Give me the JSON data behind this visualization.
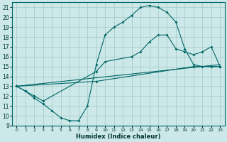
{
  "xlabel": "Humidex (Indice chaleur)",
  "bg_color": "#cce8e8",
  "grid_color": "#aacccc",
  "line_color": "#006666",
  "xlim": [
    -0.5,
    23.5
  ],
  "ylim": [
    9,
    21.5
  ],
  "yticks": [
    9,
    10,
    11,
    12,
    13,
    14,
    15,
    16,
    17,
    18,
    19,
    20,
    21
  ],
  "xticks": [
    0,
    1,
    2,
    3,
    4,
    5,
    6,
    7,
    8,
    9,
    10,
    11,
    12,
    13,
    14,
    15,
    16,
    17,
    18,
    19,
    20,
    21,
    22,
    23
  ],
  "line1_x": [
    0,
    1,
    2,
    3,
    4,
    5,
    6,
    7,
    8,
    9,
    10,
    11,
    12,
    13,
    14,
    15,
    16,
    17,
    18,
    19,
    20,
    21,
    22,
    23
  ],
  "line1_y": [
    13.0,
    12.5,
    11.8,
    11.2,
    10.5,
    9.8,
    9.5,
    9.5,
    11.0,
    15.2,
    18.2,
    19.0,
    19.5,
    20.2,
    21.0,
    21.2,
    21.0,
    20.5,
    19.5,
    16.8,
    15.2,
    15.0,
    15.0,
    15.0
  ],
  "line2_x": [
    0,
    1,
    2,
    3,
    9,
    10,
    13,
    14,
    15,
    16,
    17,
    18,
    19,
    20,
    21,
    22,
    23
  ],
  "line2_y": [
    13.0,
    12.5,
    12.0,
    11.5,
    14.5,
    15.5,
    16.0,
    16.5,
    17.5,
    18.2,
    18.2,
    16.8,
    16.5,
    16.2,
    16.5,
    17.0,
    15.0
  ],
  "line3_x": [
    0,
    9,
    20,
    23
  ],
  "line3_y": [
    13.0,
    13.5,
    15.0,
    15.0
  ],
  "line4_x": [
    0,
    23
  ],
  "line4_y": [
    13.0,
    15.2
  ]
}
